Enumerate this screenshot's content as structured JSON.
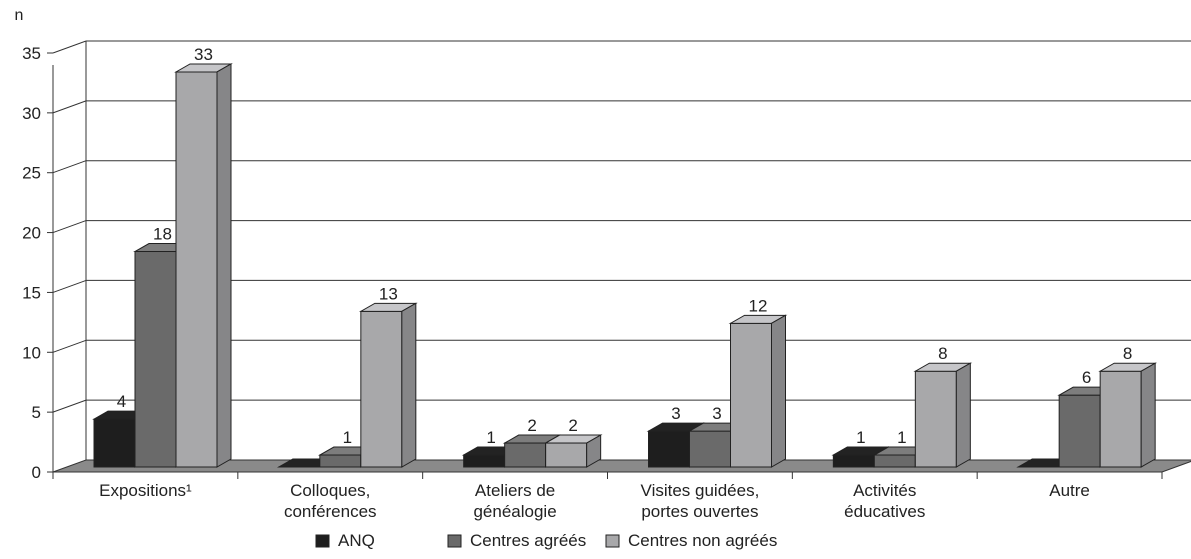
{
  "chart_data": {
    "type": "bar",
    "ylabel": "n",
    "ylim": [
      0,
      35
    ],
    "yticks": [
      0,
      5,
      10,
      15,
      20,
      25,
      30,
      35
    ],
    "grid": true,
    "legend_position": "bottom-center",
    "style": "3d-clustered-column",
    "categories": [
      [
        "Expositions¹"
      ],
      [
        "Colloques,",
        "conférences"
      ],
      [
        "Ateliers de",
        "généalogie"
      ],
      [
        "Visites guidées,",
        "portes ouvertes"
      ],
      [
        "Activités",
        "éducatives"
      ],
      [
        "Autre"
      ]
    ],
    "series": [
      {
        "name": "ANQ",
        "color": "#1e1e1e",
        "values": [
          4,
          0,
          1,
          3,
          1,
          0
        ]
      },
      {
        "name": "Centres agréés",
        "color": "#6a6a6a",
        "values": [
          18,
          1,
          2,
          3,
          1,
          6
        ]
      },
      {
        "name": "Centres non agréés",
        "color": "#a8a8aa",
        "values": [
          33,
          13,
          2,
          12,
          8,
          8
        ]
      }
    ],
    "data_labels": [
      [
        "4",
        "18",
        "33"
      ],
      [
        "",
        "1",
        "13"
      ],
      [
        "1",
        "2",
        "2"
      ],
      [
        "3",
        "3",
        "12"
      ],
      [
        "1",
        "1",
        "8"
      ],
      [
        "",
        "6",
        "8"
      ]
    ]
  }
}
